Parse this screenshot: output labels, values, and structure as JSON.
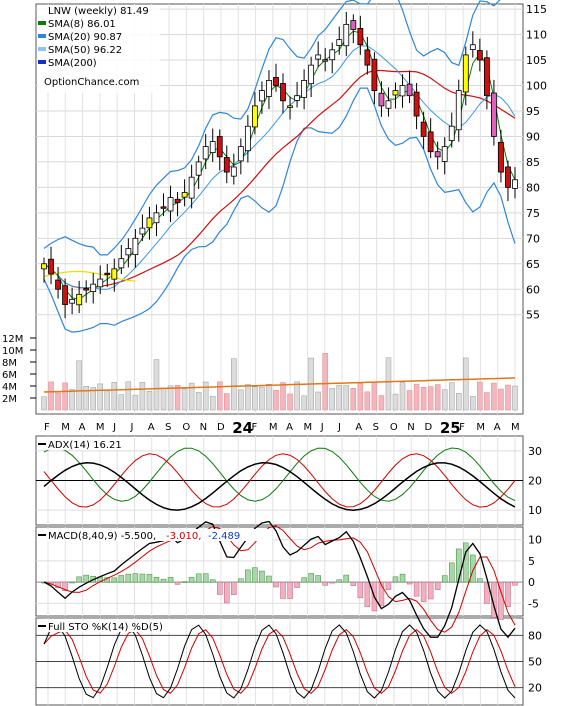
{
  "chart_data": {
    "type": "candlestick",
    "ticker_label": "LNW (weekly) 81.49",
    "source": "OptionChance.com",
    "x_labels": [
      "F",
      "M",
      "A",
      "M",
      "J",
      "J",
      "A",
      "S",
      "O",
      "N",
      "D",
      "24",
      "F",
      "M",
      "A",
      "M",
      "J",
      "J",
      "A",
      "S",
      "O",
      "N",
      "D",
      "25",
      "F",
      "M",
      "A",
      "M"
    ],
    "year_labels": [
      "24",
      "25"
    ],
    "price_axis": {
      "ylim": [
        52,
        116
      ],
      "ticks": [
        55,
        60,
        65,
        70,
        75,
        80,
        85,
        90,
        95,
        100,
        105,
        110,
        115
      ]
    },
    "volume_axis": {
      "ticks": [
        "2M",
        "4M",
        "6M",
        "8M",
        "10M",
        "12M"
      ],
      "values": [
        2,
        4,
        6,
        8,
        10,
        12
      ]
    },
    "legend": [
      {
        "label": "SMA(8) 86.01",
        "color": "#0a7a0a"
      },
      {
        "label": "SMA(20) 90.87",
        "color": "#2f86d8"
      },
      {
        "label": "SMA(50) 96.22",
        "color": "#8fc4ef"
      },
      {
        "label": "SMA(200)",
        "color": "#1030d0"
      }
    ],
    "adx_panel": {
      "title": "ADX(14) 16.21",
      "ticks": [
        10,
        20,
        30
      ],
      "ylim": [
        5,
        35
      ]
    },
    "macd_panel": {
      "title": "MACD(8,40,9) -5.500,",
      "val1": "-3.010,",
      "val2": "-2.489",
      "ticks": [
        -5,
        0,
        5,
        10
      ],
      "ylim": [
        -8,
        13
      ]
    },
    "sto_panel": {
      "title": "Full STO %K(14) %D(5)",
      "ticks": [
        20,
        50,
        80
      ],
      "ylim": [
        0,
        100
      ]
    },
    "close": [
      65,
      63,
      60,
      57,
      58,
      59,
      60,
      61,
      62,
      63,
      64,
      66,
      68,
      70,
      72,
      74,
      75,
      76,
      78,
      77,
      79,
      82,
      85,
      88,
      89,
      86,
      83,
      84,
      88,
      92,
      96,
      99,
      101,
      100,
      97,
      96,
      98,
      101,
      104,
      106,
      105,
      107,
      109,
      112,
      111,
      108,
      104,
      99,
      96,
      97,
      99,
      100,
      98,
      94,
      90,
      87,
      86,
      88,
      92,
      99,
      106,
      108,
      105,
      98,
      90,
      83,
      80,
      81.49
    ]
  }
}
